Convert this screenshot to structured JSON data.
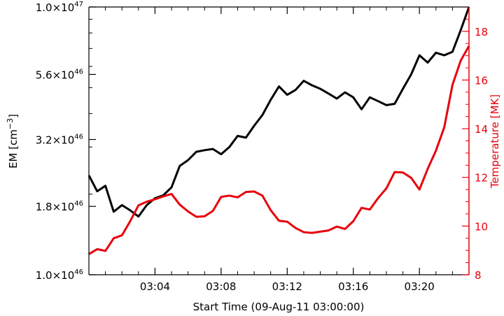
{
  "chart_data": {
    "type": "line",
    "xlabel": "Start Time (09-Aug-11 03:00:00)",
    "x_ticks": [
      "03:04",
      "03:08",
      "03:12",
      "03:16",
      "03:20"
    ],
    "x_tick_minutes": [
      4,
      8,
      12,
      16,
      20
    ],
    "x_range_minutes": [
      0,
      23
    ],
    "left_axis": {
      "label_base": "EM [cm",
      "label_exp": "−3",
      "label_end": "]",
      "scale": "log",
      "range": [
        1e+46,
        1e+47
      ],
      "color": "#000000",
      "ticks": [
        {
          "value": 1e+46,
          "mant": "1.0×10",
          "exp": "46"
        },
        {
          "value": 1.8e+46,
          "mant": "1.8×10",
          "exp": "46"
        },
        {
          "value": 3.2e+46,
          "mant": "3.2×10",
          "exp": "46"
        },
        {
          "value": 5.6e+46,
          "mant": "5.6×10",
          "exp": "46"
        },
        {
          "value": 1e+47,
          "mant": "1.0×10",
          "exp": "47"
        }
      ]
    },
    "right_axis": {
      "label": "Temperature [MK]",
      "scale": "linear",
      "range": [
        8,
        19
      ],
      "color": "#e8000b",
      "ticks": [
        "8",
        "10",
        "12",
        "14",
        "16",
        "18"
      ],
      "tick_values": [
        8,
        10,
        12,
        14,
        16,
        18
      ]
    },
    "series": [
      {
        "axis": "left",
        "color": "#000000",
        "x_minutes": [
          0.0,
          0.5,
          1.0,
          1.5,
          2.0,
          2.5,
          3.0,
          3.5,
          4.0,
          4.5,
          5.0,
          5.5,
          6.0,
          6.5,
          7.0,
          7.5,
          8.0,
          8.5,
          9.0,
          9.5,
          10.0,
          10.5,
          11.0,
          11.5,
          12.0,
          12.5,
          13.0,
          13.5,
          14.0,
          14.5,
          15.0,
          15.5,
          16.0,
          16.5,
          17.0,
          17.5,
          18.0,
          18.5,
          19.0,
          19.5,
          20.0,
          20.5,
          21.0,
          21.5,
          22.0,
          22.5,
          23.0
        ],
        "values": [
          2.35e+46,
          2.05e+46,
          2.15e+46,
          1.72e+46,
          1.82e+46,
          1.74e+46,
          1.65e+46,
          1.82e+46,
          1.93e+46,
          1.98e+46,
          2.12e+46,
          2.55e+46,
          2.68e+46,
          2.88e+46,
          2.92e+46,
          2.95e+46,
          2.82e+46,
          3e+46,
          3.3e+46,
          3.25e+46,
          3.6e+46,
          3.95e+46,
          4.5e+46,
          5.05e+46,
          4.7e+46,
          4.9e+46,
          5.3e+46,
          5.1e+46,
          4.95e+46,
          4.75e+46,
          4.55e+46,
          4.8e+46,
          4.6e+46,
          4.15e+46,
          4.6e+46,
          4.45e+46,
          4.3e+46,
          4.35e+46,
          4.95e+46,
          5.6e+46,
          6.6e+46,
          6.2e+46,
          6.75e+46,
          6.6e+46,
          6.8e+46,
          8.2e+46,
          1e+47
        ]
      },
      {
        "axis": "right",
        "color": "#e8000b",
        "x_minutes": [
          0.0,
          0.5,
          1.0,
          1.5,
          2.0,
          2.5,
          3.0,
          3.5,
          4.0,
          4.5,
          5.0,
          5.5,
          6.0,
          6.5,
          7.0,
          7.5,
          8.0,
          8.5,
          9.0,
          9.5,
          10.0,
          10.5,
          11.0,
          11.5,
          12.0,
          12.5,
          13.0,
          13.5,
          14.0,
          14.5,
          15.0,
          15.5,
          16.0,
          16.5,
          17.0,
          17.5,
          18.0,
          18.5,
          19.0,
          19.5,
          20.0,
          20.5,
          21.0,
          21.5,
          22.0,
          22.5,
          23.0
        ],
        "values": [
          8.85,
          9.05,
          8.98,
          9.5,
          9.62,
          10.2,
          10.85,
          11.0,
          11.1,
          11.22,
          11.32,
          10.88,
          10.6,
          10.38,
          10.4,
          10.62,
          11.2,
          11.25,
          11.18,
          11.4,
          11.42,
          11.25,
          10.65,
          10.22,
          10.18,
          9.92,
          9.75,
          9.72,
          9.77,
          9.82,
          9.98,
          9.88,
          10.2,
          10.75,
          10.68,
          11.15,
          11.55,
          12.22,
          12.2,
          11.98,
          11.5,
          12.35,
          13.1,
          14.05,
          15.8,
          16.8,
          17.4
        ]
      }
    ]
  }
}
